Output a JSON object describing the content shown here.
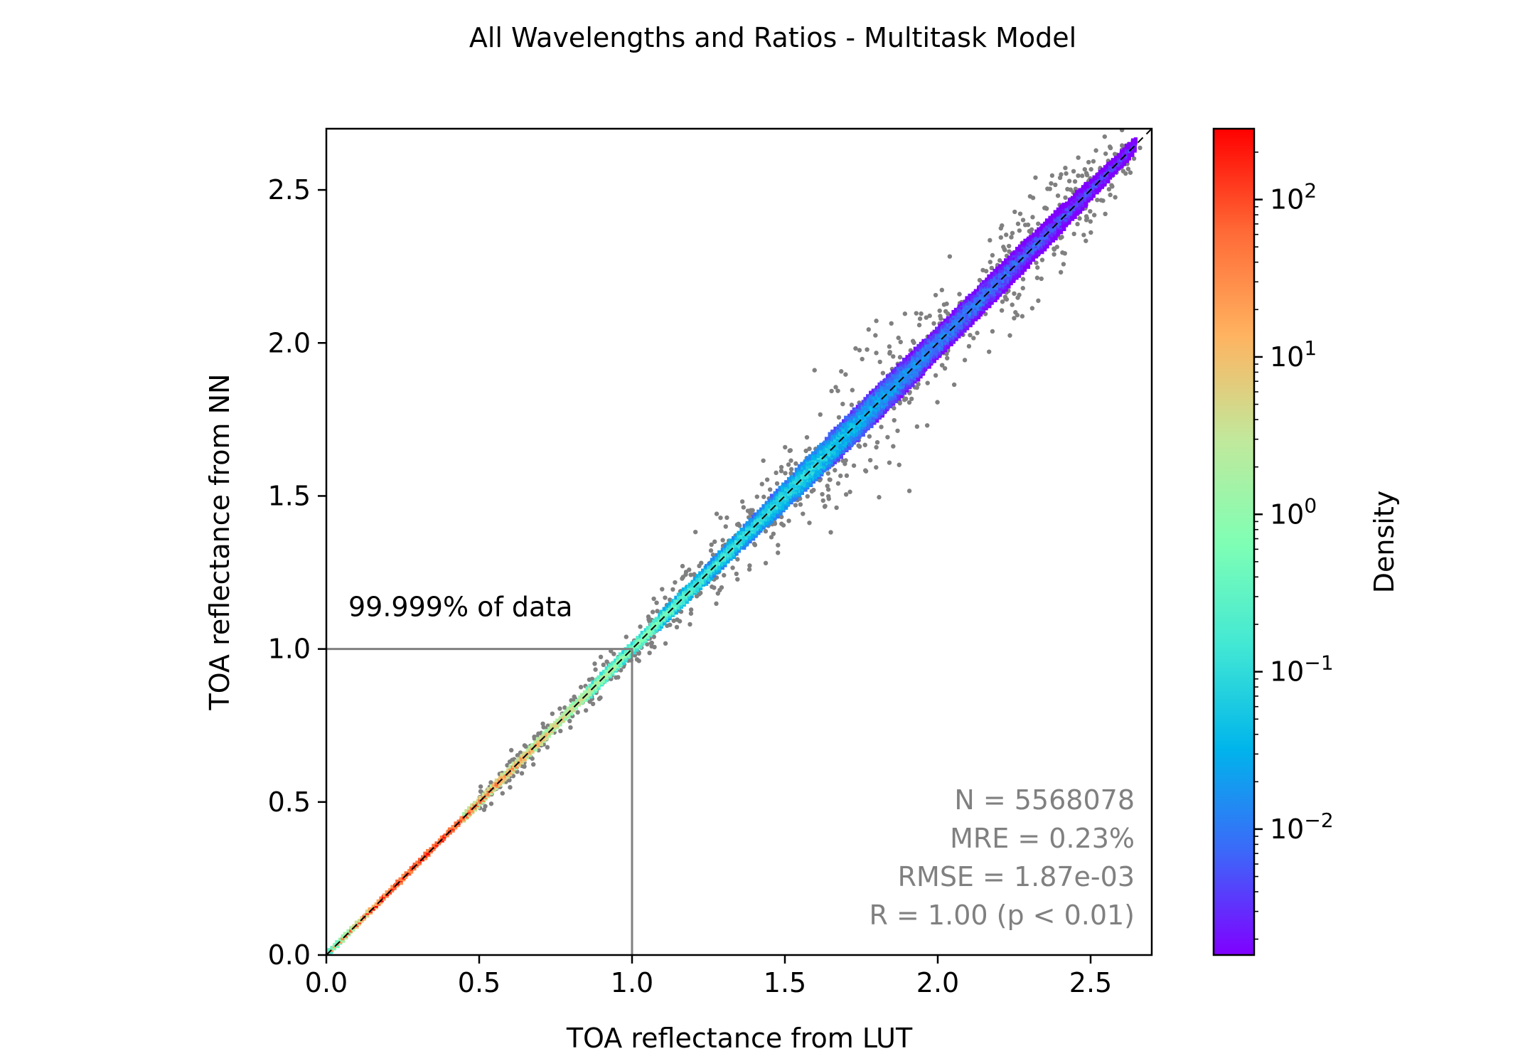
{
  "chart_data": {
    "type": "scatter",
    "title": "All Wavelengths and Ratios - Multitask Model",
    "xlabel": "TOA reflectance from LUT",
    "ylabel": "TOA reflectance from NN",
    "xlim": [
      0,
      2.7
    ],
    "ylim": [
      0,
      2.7
    ],
    "xticks": [
      0.0,
      0.5,
      1.0,
      1.5,
      2.0,
      2.5
    ],
    "yticks": [
      0.0,
      0.5,
      1.0,
      1.5,
      2.0,
      2.5
    ],
    "xtick_labels": [
      "0.0",
      "0.5",
      "1.0",
      "1.5",
      "2.0",
      "2.5"
    ],
    "ytick_labels": [
      "0.0",
      "0.5",
      "1.0",
      "1.5",
      "2.0",
      "2.5"
    ],
    "reference_line": "y = x",
    "coverage_box": {
      "x_max": 1.0,
      "y_max": 1.0,
      "label": "99.999% of data"
    },
    "stats": [
      "N = 5568078",
      "MRE = 0.23%",
      "RMSE = 1.87e-03",
      "R = 1.00 (p < 0.01)"
    ],
    "density_profile": [
      {
        "x": 0.0,
        "log_density": 1.2,
        "spread": 0.004
      },
      {
        "x": 0.2,
        "log_density": 2.5,
        "spread": 0.006
      },
      {
        "x": 0.4,
        "log_density": 2.2,
        "spread": 0.008
      },
      {
        "x": 0.6,
        "log_density": 1.5,
        "spread": 0.012
      },
      {
        "x": 0.8,
        "log_density": 0.8,
        "spread": 0.014
      },
      {
        "x": 1.0,
        "log_density": 0.0,
        "spread": 0.018
      },
      {
        "x": 1.2,
        "log_density": -0.6,
        "spread": 0.025
      },
      {
        "x": 1.4,
        "log_density": -1.0,
        "spread": 0.035
      },
      {
        "x": 1.6,
        "log_density": -1.1,
        "spread": 0.05
      },
      {
        "x": 1.8,
        "log_density": -1.6,
        "spread": 0.055
      },
      {
        "x": 2.0,
        "log_density": -1.9,
        "spread": 0.05
      },
      {
        "x": 2.2,
        "log_density": -2.1,
        "spread": 0.05
      },
      {
        "x": 2.4,
        "log_density": -2.3,
        "spread": 0.04
      },
      {
        "x": 2.65,
        "log_density": -2.5,
        "spread": 0.02
      }
    ],
    "colorbar": {
      "label": "Density",
      "scale": "log",
      "range_log10": [
        -2.8,
        2.45
      ],
      "ticks_log10": [
        -2,
        -1,
        0,
        1,
        2
      ],
      "tick_base": "10",
      "tick_exponents": [
        "−2",
        "−1",
        "0",
        "1",
        "2"
      ],
      "colormap": [
        "#8000ff",
        "#3c68f9",
        "#00b5eb",
        "#42e8d4",
        "#80ffb4",
        "#c2e89b",
        "#ffb360",
        "#ff6a36",
        "#ff0000"
      ]
    },
    "outlier_color": "#808080",
    "grid": false
  }
}
